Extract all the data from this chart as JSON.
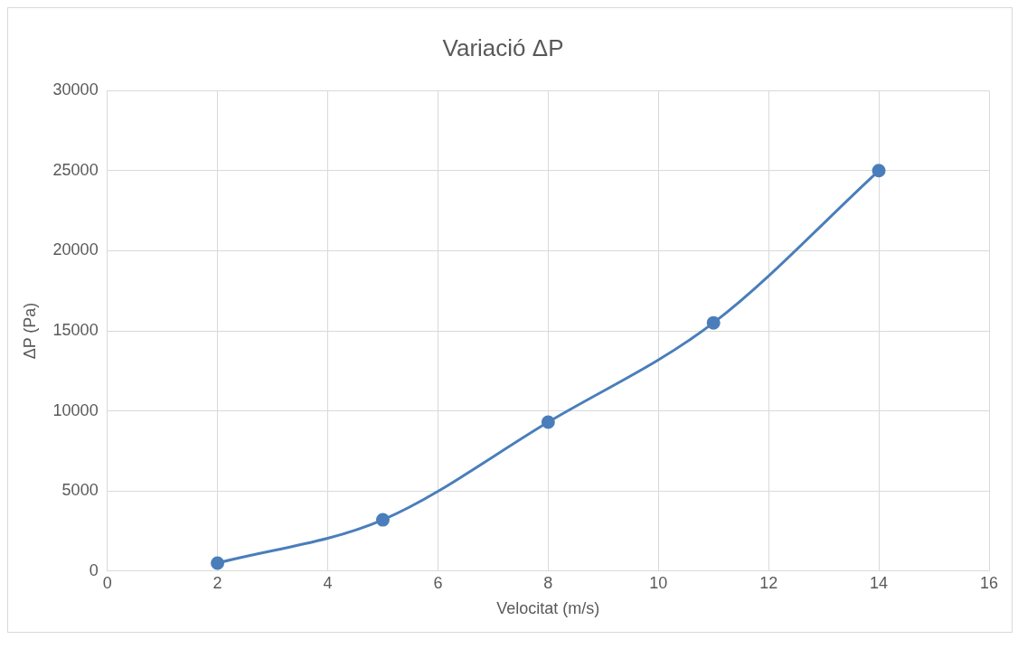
{
  "chart_data": {
    "type": "line",
    "title": "Variació ΔP",
    "xlabel": "Velocitat (m/s)",
    "ylabel": "ΔP (Pa)",
    "x": [
      2,
      5,
      8,
      11,
      14
    ],
    "series": [
      {
        "color": "#4a7ebb",
        "values": [
          500,
          3200,
          9300,
          15500,
          25000
        ]
      }
    ],
    "xlim": [
      0,
      16
    ],
    "xticks": [
      0,
      2,
      4,
      6,
      8,
      10,
      12,
      14,
      16
    ],
    "ylim": [
      0,
      30000
    ],
    "yticks": [
      0,
      5000,
      10000,
      15000,
      20000,
      25000,
      30000
    ],
    "grid": true,
    "marker": "circle",
    "line_style": "solid",
    "legend": false
  }
}
